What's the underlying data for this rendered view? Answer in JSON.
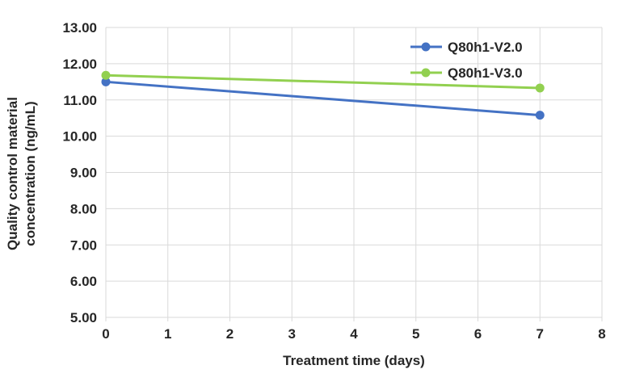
{
  "colors": {
    "background": "#FFFFFF",
    "grid": "#D9D9D9",
    "text": "#262626",
    "series1": "#4472C4",
    "series2": "#92D050"
  },
  "chart_data": {
    "type": "line",
    "title": "",
    "xlabel": "Treatment time (days)",
    "ylabel": "Quality control material concentration (ng/mL)",
    "ylabel_lines": [
      "Quality control material",
      "concentration (ng/mL)"
    ],
    "xlim": [
      0,
      8
    ],
    "ylim": [
      5,
      13
    ],
    "x_ticks": [
      0,
      1,
      2,
      3,
      4,
      5,
      6,
      7,
      8
    ],
    "x_tick_labels": [
      "0",
      "1",
      "2",
      "3",
      "4",
      "5",
      "6",
      "7",
      "8"
    ],
    "y_ticks": [
      5,
      6,
      7,
      8,
      9,
      10,
      11,
      12,
      13
    ],
    "y_tick_labels": [
      "5.00",
      "6.00",
      "7.00",
      "8.00",
      "9.00",
      "10.00",
      "11.00",
      "12.00",
      "13.00"
    ],
    "grid": true,
    "legend_position": "inside-top-right",
    "x": [
      0,
      7
    ],
    "series": [
      {
        "name": "Q80h1-V2.0",
        "color": "#4472C4",
        "values": [
          11.5,
          10.58
        ]
      },
      {
        "name": "Q80h1-V3.0",
        "color": "#92D050",
        "values": [
          11.68,
          11.33
        ]
      }
    ]
  }
}
